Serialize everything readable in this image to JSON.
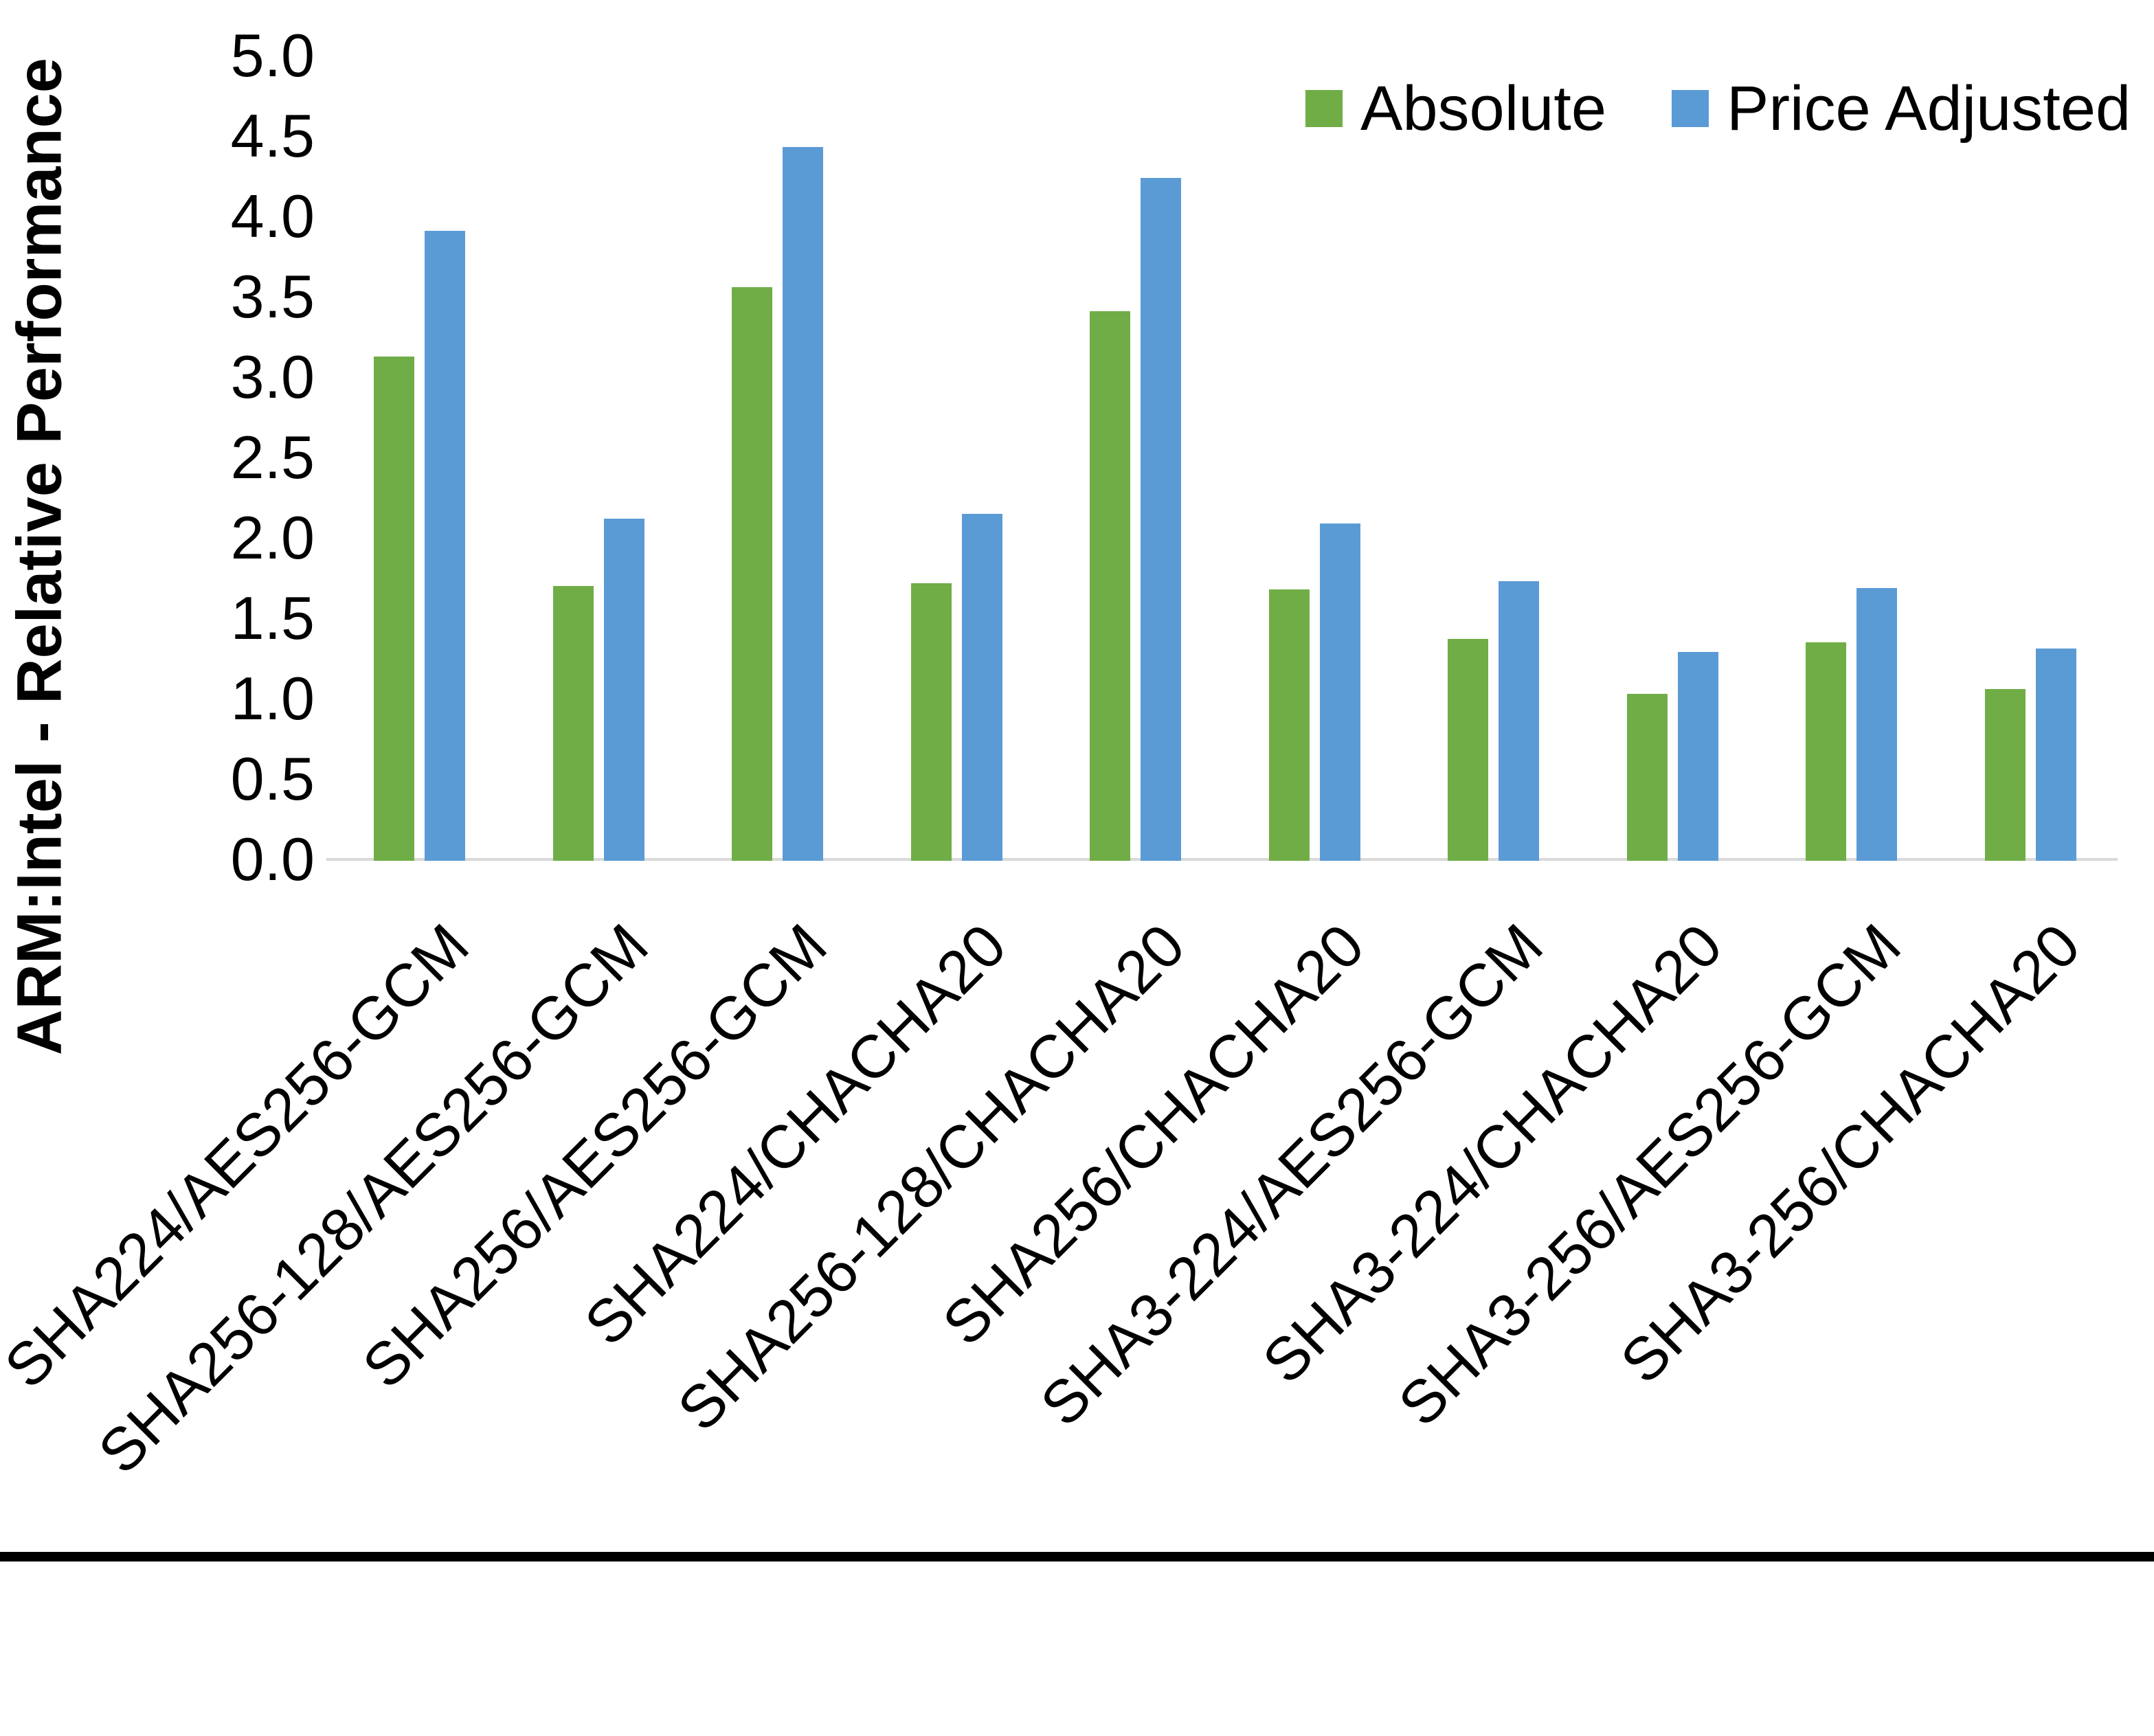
{
  "chart_data": {
    "type": "bar",
    "title": "",
    "xlabel": "",
    "ylabel": "ARM:Intel - Relative Performance",
    "ylim": [
      0,
      5
    ],
    "ytick_step": 0.5,
    "ytick_labels": [
      "0.0",
      "0.5",
      "1.0",
      "1.5",
      "2.0",
      "2.5",
      "3.0",
      "3.5",
      "4.0",
      "4.5",
      "5.0"
    ],
    "grid": false,
    "legend_position": "top-right",
    "categories": [
      "SHA224/AES256-GCM",
      "SHA256-128/AES256-GCM",
      "SHA256/AES256-GCM",
      "SHA224/CHACHA20",
      "SHA256-128/CHACHA20",
      "SHA256/CHACHA20",
      "SHA3-224/AES256-GCM",
      "SHA3-224/CHACHA20",
      "SHA3-256/AES256-GCM",
      "SHA3-256/CHACHA20"
    ],
    "series": [
      {
        "name": "Absolute",
        "color": "#70AD47",
        "values": [
          3.13,
          1.7,
          3.56,
          1.72,
          3.41,
          1.68,
          1.37,
          1.03,
          1.35,
          1.06
        ]
      },
      {
        "name": "Price Adjusted",
        "color": "#5B9BD5",
        "values": [
          3.91,
          2.12,
          4.43,
          2.15,
          4.24,
          2.09,
          1.73,
          1.29,
          1.69,
          1.31
        ]
      }
    ],
    "axis_line_color": "#D9D9D9",
    "text_color": "#000000",
    "background_color": "#FFFFFF",
    "bottom_border_color": "#000000"
  }
}
